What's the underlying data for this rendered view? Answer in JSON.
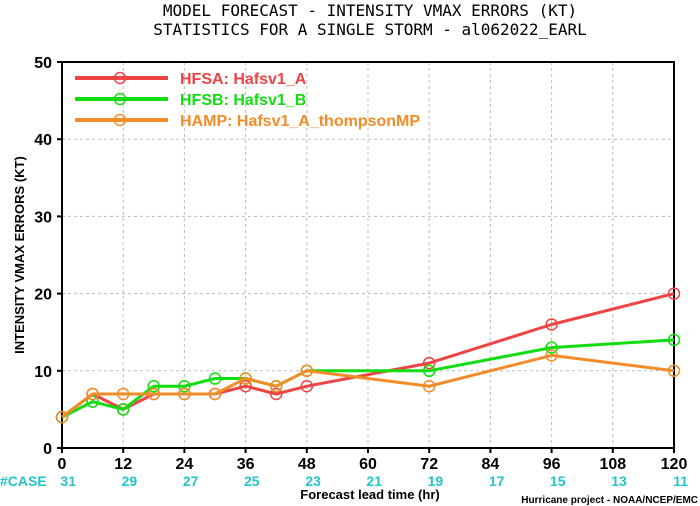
{
  "chart_data": {
    "type": "line",
    "title": "MODEL FORECAST - INTENSITY VMAX ERRORS (KT)",
    "subtitle": "STATISTICS FOR A SINGLE STORM - al062022_EARL",
    "xlabel": "Forecast lead time (hr)",
    "ylabel": "INTENSITY VMAX ERRORS (KT)",
    "xlim": [
      0,
      120
    ],
    "ylim": [
      0,
      50
    ],
    "x_ticks": [
      "0",
      "12",
      "24",
      "36",
      "48",
      "60",
      "72",
      "84",
      "96",
      "108",
      "120"
    ],
    "y_ticks": [
      "0",
      "10",
      "20",
      "30",
      "40",
      "50"
    ],
    "grid": true,
    "legend_position": "top-left",
    "series": [
      {
        "name": "HFSA: Hafsv1_A",
        "color": "#ee4444",
        "x": [
          0,
          6,
          12,
          18,
          24,
          30,
          36,
          42,
          48,
          72,
          96,
          120
        ],
        "values": [
          4,
          7,
          5,
          7,
          7,
          7,
          8,
          7,
          8,
          11,
          16,
          20
        ]
      },
      {
        "name": "HFSB: Hafsv1_B",
        "color": "#11dd11",
        "x": [
          0,
          6,
          12,
          18,
          24,
          30,
          36,
          42,
          48,
          72,
          96,
          120
        ],
        "values": [
          4,
          6,
          5,
          8,
          8,
          9,
          9,
          8,
          10,
          10,
          13,
          14
        ]
      },
      {
        "name": "HAMP: Hafsv1_A_thompsonMP",
        "color": "#f28c28",
        "x": [
          0,
          6,
          12,
          18,
          24,
          30,
          36,
          42,
          48,
          72,
          96,
          120
        ],
        "values": [
          4,
          7,
          7,
          7,
          7,
          7,
          9,
          8,
          10,
          8,
          12,
          10
        ]
      }
    ],
    "case_label": "#CASE",
    "case_color": "#22c4cc",
    "case_counts": [
      "31",
      "29",
      "27",
      "25",
      "23",
      "21",
      "19",
      "17",
      "15",
      "13",
      "11"
    ],
    "credit": "Hurricane project - NOAA/NCEP/EMC"
  }
}
